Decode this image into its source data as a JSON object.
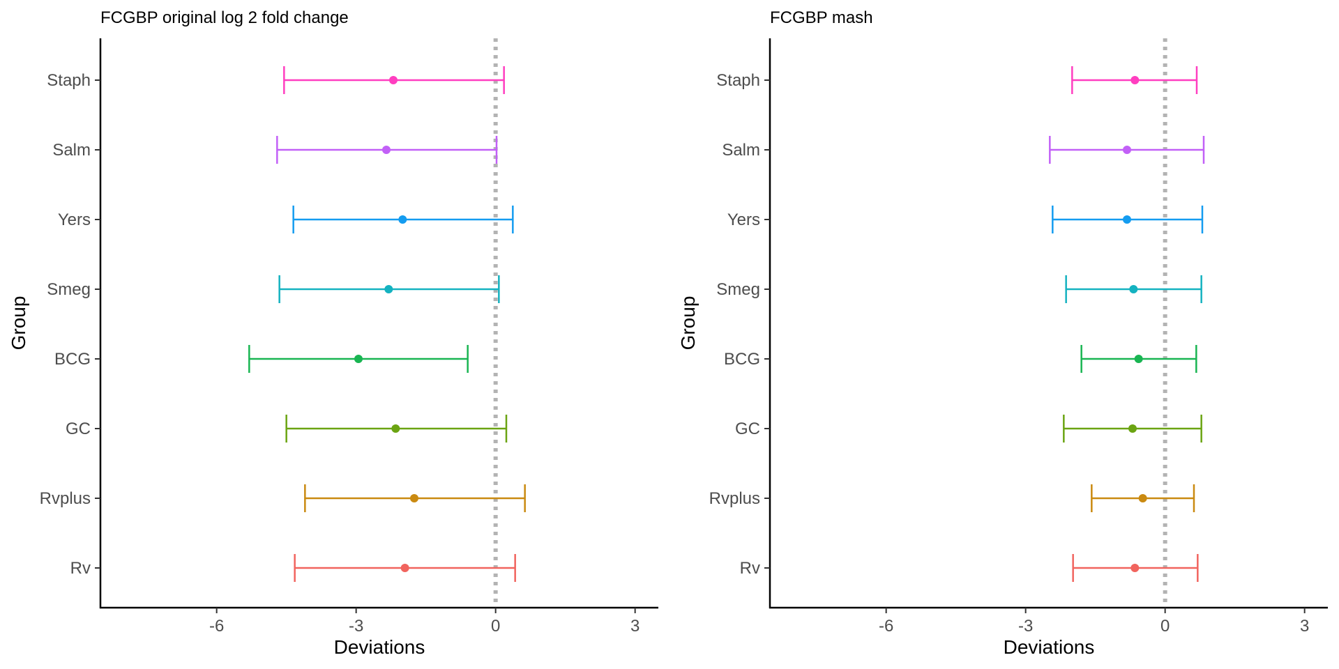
{
  "chart_data": [
    {
      "type": "errorbar",
      "title": "FCGBP original log 2 fold change",
      "xlabel": "Deviations",
      "ylabel": "Group",
      "xlim": [
        -8.5,
        3.5
      ],
      "x_ticks": [
        -6,
        -3,
        0,
        3
      ],
      "x_tick_labels": [
        "-6",
        "-3",
        "0",
        "3"
      ],
      "reference_line": {
        "x": 0,
        "style": "dotted",
        "color": "#b3b3b3"
      },
      "grid": false,
      "legend": "none",
      "categories": [
        "Staph",
        "Salm",
        "Yers",
        "Smeg",
        "BCG",
        "GC",
        "Rvplus",
        "Rv"
      ],
      "points": [
        {
          "group": "Staph",
          "center": -2.2,
          "low": -4.55,
          "high": 0.18,
          "color": "#FF3EC0"
        },
        {
          "group": "Salm",
          "center": -2.35,
          "low": -4.7,
          "high": 0.02,
          "color": "#C260F7"
        },
        {
          "group": "Yers",
          "center": -2.0,
          "low": -4.35,
          "high": 0.37,
          "color": "#149CF0"
        },
        {
          "group": "Smeg",
          "center": -2.3,
          "low": -4.65,
          "high": 0.07,
          "color": "#14B2C0"
        },
        {
          "group": "BCG",
          "center": -2.95,
          "low": -5.3,
          "high": -0.6,
          "color": "#19B552"
        },
        {
          "group": "GC",
          "center": -2.15,
          "low": -4.5,
          "high": 0.23,
          "color": "#6BA412"
        },
        {
          "group": "Rvplus",
          "center": -1.75,
          "low": -4.1,
          "high": 0.63,
          "color": "#CA8A11"
        },
        {
          "group": "Rv",
          "center": -1.95,
          "low": -4.32,
          "high": 0.42,
          "color": "#F1645E"
        }
      ]
    },
    {
      "type": "errorbar",
      "title": "FCGBP mash",
      "xlabel": "Deviations",
      "ylabel": "Group",
      "xlim": [
        -8.5,
        3.5
      ],
      "x_ticks": [
        -6,
        -3,
        0,
        3
      ],
      "x_tick_labels": [
        "-6",
        "-3",
        "0",
        "3"
      ],
      "reference_line": {
        "x": 0,
        "style": "dotted",
        "color": "#b3b3b3"
      },
      "grid": false,
      "legend": "none",
      "categories": [
        "Staph",
        "Salm",
        "Yers",
        "Smeg",
        "BCG",
        "GC",
        "Rvplus",
        "Rv"
      ],
      "points": [
        {
          "group": "Staph",
          "center": -0.65,
          "low": -2.0,
          "high": 0.68,
          "color": "#FF3EC0"
        },
        {
          "group": "Salm",
          "center": -0.82,
          "low": -2.48,
          "high": 0.83,
          "color": "#C260F7"
        },
        {
          "group": "Yers",
          "center": -0.82,
          "low": -2.42,
          "high": 0.8,
          "color": "#149CF0"
        },
        {
          "group": "Smeg",
          "center": -0.68,
          "low": -2.13,
          "high": 0.78,
          "color": "#14B2C0"
        },
        {
          "group": "BCG",
          "center": -0.57,
          "low": -1.8,
          "high": 0.67,
          "color": "#19B552"
        },
        {
          "group": "GC",
          "center": -0.7,
          "low": -2.18,
          "high": 0.78,
          "color": "#6BA412"
        },
        {
          "group": "Rvplus",
          "center": -0.48,
          "low": -1.58,
          "high": 0.62,
          "color": "#CA8A11"
        },
        {
          "group": "Rv",
          "center": -0.65,
          "low": -1.98,
          "high": 0.7,
          "color": "#F1645E"
        }
      ]
    }
  ]
}
